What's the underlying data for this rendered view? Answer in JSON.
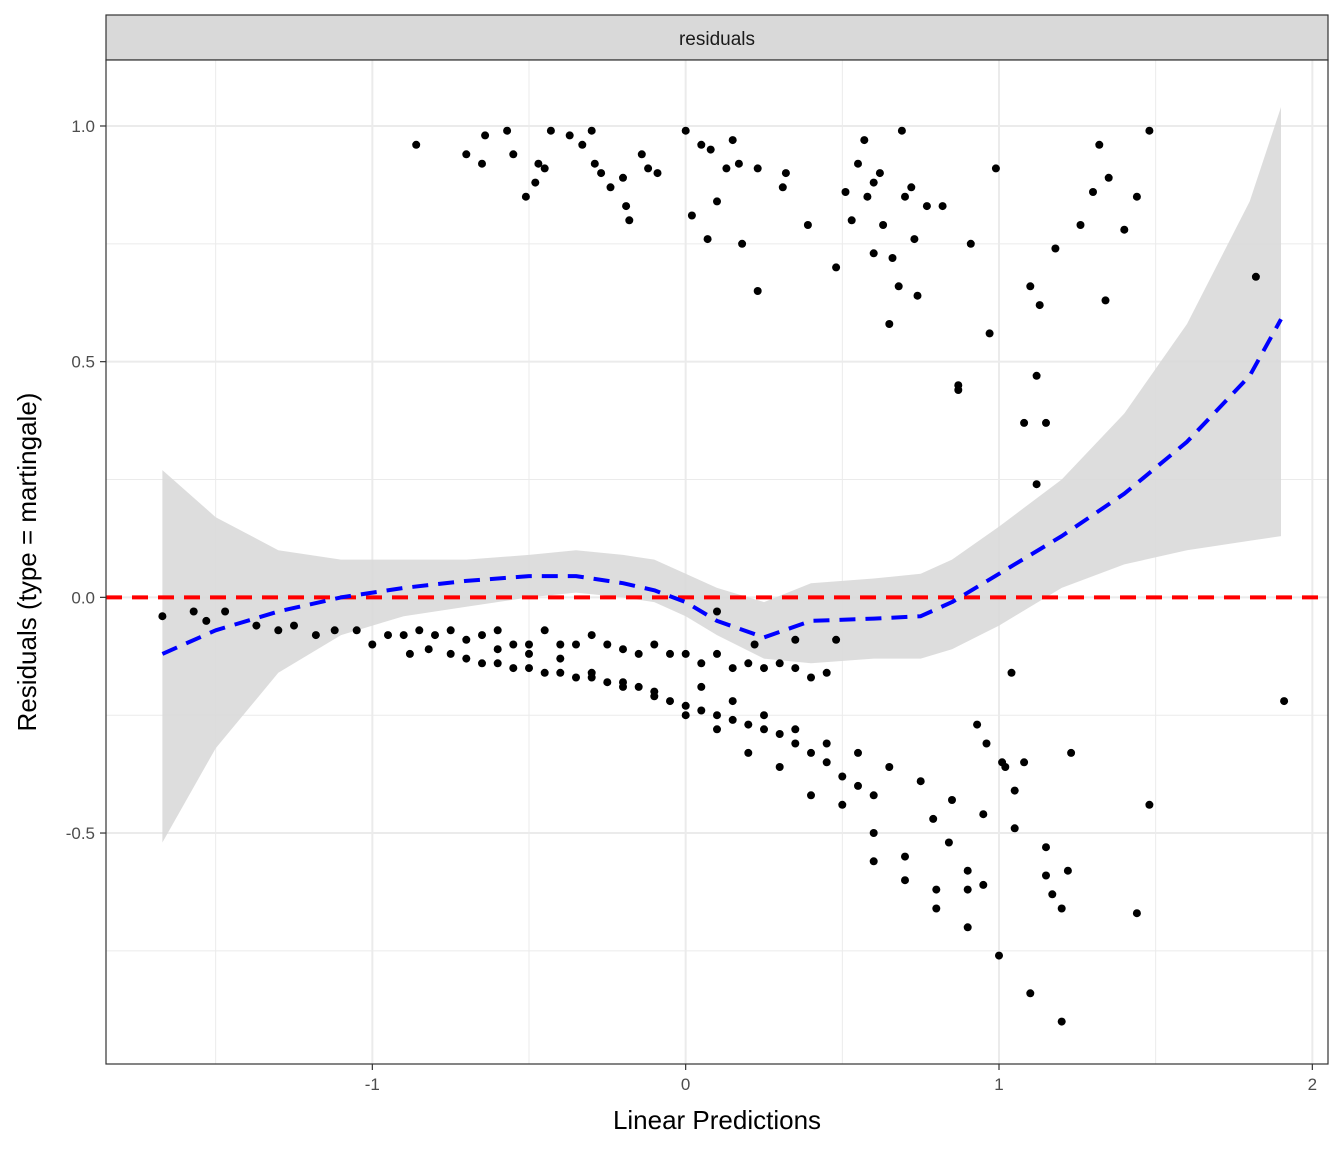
{
  "chart_data": {
    "type": "scatter",
    "strip_label": "residuals",
    "xlabel": "Linear Predictions",
    "ylabel": "Residuals (type = martingale)",
    "xlim": [
      -1.85,
      2.05
    ],
    "ylim": [
      -0.99,
      1.14
    ],
    "x_ticks": [
      {
        "value": -1,
        "label": "-1"
      },
      {
        "value": 0,
        "label": "0"
      },
      {
        "value": 1,
        "label": "1"
      },
      {
        "value": 2,
        "label": "2"
      }
    ],
    "y_ticks": [
      {
        "value": -0.5,
        "label": "-0.5"
      },
      {
        "value": 0.0,
        "label": "0.0"
      },
      {
        "value": 0.5,
        "label": "0.5"
      },
      {
        "value": 1.0,
        "label": "1.0"
      }
    ],
    "grid": true,
    "reference_line": {
      "y": 0,
      "color": "#ff0000",
      "style": "dashed"
    },
    "smooth": {
      "color": "#0000ff",
      "style": "dashed",
      "band_color": "#d9d9d9",
      "x": [
        -1.67,
        -1.5,
        -1.3,
        -1.1,
        -0.9,
        -0.7,
        -0.5,
        -0.35,
        -0.2,
        -0.1,
        0.0,
        0.1,
        0.25,
        0.4,
        0.6,
        0.75,
        0.85,
        1.0,
        1.2,
        1.4,
        1.6,
        1.8,
        1.9
      ],
      "fit": [
        -0.12,
        -0.07,
        -0.03,
        0.0,
        0.02,
        0.035,
        0.045,
        0.045,
        0.03,
        0.015,
        -0.01,
        -0.05,
        -0.085,
        -0.05,
        -0.045,
        -0.04,
        -0.01,
        0.05,
        0.13,
        0.22,
        0.33,
        0.47,
        0.59
      ],
      "lower": [
        -0.52,
        -0.32,
        -0.16,
        -0.08,
        -0.04,
        -0.02,
        0.0,
        0.01,
        0.0,
        -0.01,
        -0.04,
        -0.08,
        -0.13,
        -0.14,
        -0.13,
        -0.13,
        -0.11,
        -0.06,
        0.02,
        0.07,
        0.1,
        0.12,
        0.13
      ],
      "upper": [
        0.27,
        0.17,
        0.1,
        0.08,
        0.08,
        0.08,
        0.09,
        0.1,
        0.09,
        0.08,
        0.05,
        0.02,
        -0.01,
        0.03,
        0.04,
        0.05,
        0.08,
        0.15,
        0.25,
        0.39,
        0.58,
        0.84,
        1.04
      ]
    },
    "points": {
      "color": "#000000",
      "x": [
        -0.86,
        -0.7,
        -0.65,
        -0.64,
        -0.57,
        -0.55,
        -0.51,
        -0.48,
        -0.47,
        -0.45,
        -0.43,
        -0.37,
        -0.33,
        -0.3,
        -0.29,
        -0.27,
        -0.24,
        -0.2,
        -0.19,
        -0.18,
        -0.14,
        -0.12,
        -0.09,
        0.0,
        0.02,
        0.05,
        0.07,
        0.08,
        0.1,
        0.13,
        0.15,
        0.17,
        0.18,
        0.23,
        0.31,
        0.32,
        0.39,
        0.48,
        0.51,
        0.53,
        0.55,
        0.57,
        0.58,
        0.6,
        0.63,
        0.66,
        0.68,
        0.69,
        0.7,
        0.72,
        0.73,
        0.74,
        0.77,
        0.82,
        0.91,
        0.97,
        0.99,
        1.1,
        1.13,
        1.18,
        1.26,
        1.3,
        1.32,
        1.34,
        1.35,
        1.4,
        1.44,
        1.48,
        0.87,
        0.87,
        1.08,
        1.15,
        1.12,
        1.12,
        1.82,
        0.23,
        0.65,
        0.62,
        0.6,
        -1.67,
        -1.57,
        -1.53,
        -1.47,
        -1.37,
        -1.3,
        -1.25,
        -1.18,
        -1.12,
        -1.05,
        -1.0,
        -0.95,
        -0.9,
        -0.85,
        -0.8,
        -0.75,
        -0.7,
        -0.65,
        -0.6,
        -0.55,
        -0.5,
        -0.45,
        -0.4,
        -0.35,
        -0.3,
        -0.25,
        -0.2,
        -0.15,
        -0.1,
        -0.05,
        0.0,
        0.05,
        0.1,
        0.15,
        0.2,
        0.25,
        0.3,
        0.35,
        0.4,
        0.45,
        0.48,
        0.1,
        0.22,
        0.35,
        -0.88,
        -0.82,
        -0.75,
        -0.7,
        -0.65,
        -0.6,
        -0.55,
        -0.5,
        -0.45,
        -0.4,
        -0.35,
        -0.3,
        -0.25,
        -0.2,
        -0.15,
        -0.1,
        -0.05,
        0.0,
        0.05,
        0.1,
        0.15,
        0.2,
        0.25,
        0.3,
        0.35,
        0.4,
        0.45,
        0.5,
        0.55,
        0.6,
        -0.6,
        -0.5,
        -0.4,
        -0.3,
        -0.2,
        -0.1,
        0.0,
        0.1,
        0.2,
        0.3,
        0.4,
        0.5,
        0.6,
        0.7,
        0.8,
        0.9,
        1.0,
        1.1,
        1.2,
        0.05,
        0.15,
        0.25,
        0.35,
        0.45,
        0.55,
        0.65,
        0.75,
        0.85,
        0.95,
        1.05,
        1.15,
        1.22,
        0.9,
        0.8,
        0.7,
        0.6,
        1.04,
        1.02,
        1.08,
        1.23,
        1.44,
        1.48,
        1.91,
        0.93,
        0.96,
        1.01,
        1.05,
        1.15,
        1.17,
        1.2,
        0.79,
        0.84,
        0.9,
        0.95
      ],
      "y": [
        0.96,
        0.94,
        0.92,
        0.98,
        0.99,
        0.94,
        0.85,
        0.88,
        0.92,
        0.91,
        0.99,
        0.98,
        0.96,
        0.99,
        0.92,
        0.9,
        0.87,
        0.89,
        0.83,
        0.8,
        0.94,
        0.91,
        0.9,
        0.99,
        0.81,
        0.96,
        0.76,
        0.95,
        0.84,
        0.91,
        0.97,
        0.92,
        0.75,
        0.91,
        0.87,
        0.9,
        0.79,
        0.7,
        0.86,
        0.8,
        0.92,
        0.97,
        0.85,
        0.73,
        0.79,
        0.72,
        0.66,
        0.99,
        0.85,
        0.87,
        0.76,
        0.64,
        0.83,
        0.83,
        0.75,
        0.56,
        0.91,
        0.66,
        0.62,
        0.74,
        0.79,
        0.86,
        0.96,
        0.63,
        0.89,
        0.78,
        0.85,
        0.99,
        0.45,
        0.44,
        0.37,
        0.37,
        0.47,
        0.24,
        0.68,
        0.65,
        0.58,
        0.9,
        0.88,
        -0.04,
        -0.03,
        -0.05,
        -0.03,
        -0.06,
        -0.07,
        -0.06,
        -0.08,
        -0.07,
        -0.07,
        -0.1,
        -0.08,
        -0.08,
        -0.07,
        -0.08,
        -0.07,
        -0.09,
        -0.08,
        -0.07,
        -0.1,
        -0.1,
        -0.07,
        -0.1,
        -0.1,
        -0.08,
        -0.1,
        -0.11,
        -0.12,
        -0.1,
        -0.12,
        -0.12,
        -0.14,
        -0.12,
        -0.15,
        -0.14,
        -0.15,
        -0.14,
        -0.15,
        -0.17,
        -0.16,
        -0.09,
        -0.03,
        -0.1,
        -0.09,
        -0.12,
        -0.11,
        -0.12,
        -0.13,
        -0.14,
        -0.14,
        -0.15,
        -0.15,
        -0.16,
        -0.16,
        -0.17,
        -0.17,
        -0.18,
        -0.19,
        -0.19,
        -0.21,
        -0.22,
        -0.23,
        -0.24,
        -0.25,
        -0.26,
        -0.27,
        -0.28,
        -0.29,
        -0.31,
        -0.33,
        -0.35,
        -0.38,
        -0.4,
        -0.42,
        -0.11,
        -0.12,
        -0.13,
        -0.16,
        -0.18,
        -0.2,
        -0.25,
        -0.28,
        -0.33,
        -0.36,
        -0.42,
        -0.44,
        -0.5,
        -0.55,
        -0.62,
        -0.7,
        -0.76,
        -0.84,
        -0.9,
        -0.19,
        -0.22,
        -0.25,
        -0.28,
        -0.31,
        -0.33,
        -0.36,
        -0.39,
        -0.43,
        -0.46,
        -0.49,
        -0.53,
        -0.58,
        -0.62,
        -0.66,
        -0.6,
        -0.56,
        -0.16,
        -0.36,
        -0.35,
        -0.33,
        -0.67,
        -0.44,
        -0.22,
        -0.27,
        -0.31,
        -0.35,
        -0.41,
        -0.59,
        -0.63,
        -0.66,
        -0.47,
        -0.52,
        -0.58,
        -0.61
      ]
    }
  }
}
